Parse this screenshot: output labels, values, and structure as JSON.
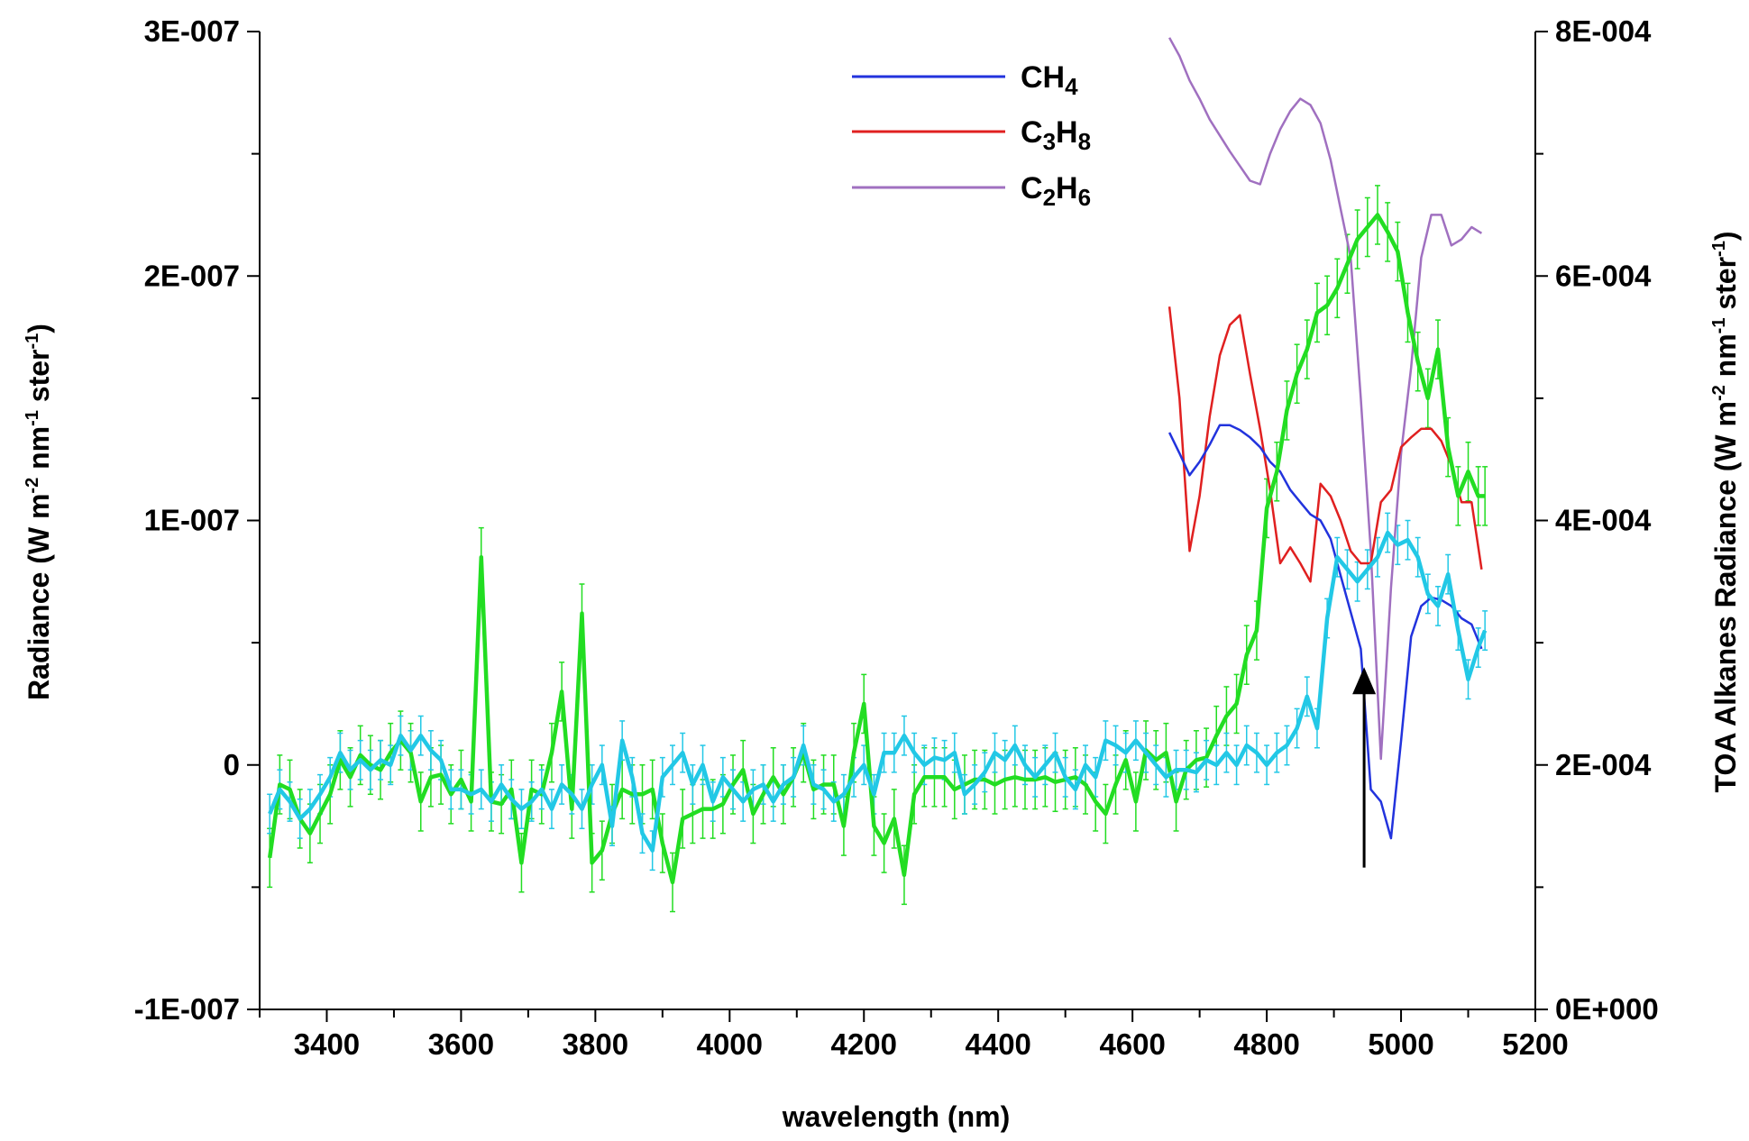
{
  "chart_data": {
    "type": "line",
    "xlabel": "wavelength (nm)",
    "ylabel": "Radiance (W m-2 nm-1 ster-1)",
    "y2label": "TOA Alkanes Radiance (W m-2 nm-1 ster-1)",
    "xlim": [
      3300,
      5200
    ],
    "ylim": [
      -1e-07,
      3e-07
    ],
    "y2lim": [
      0,
      0.0008
    ],
    "x_ticks": [
      {
        "v": 3400,
        "label": "3400"
      },
      {
        "v": 3600,
        "label": "3600"
      },
      {
        "v": 3800,
        "label": "3800"
      },
      {
        "v": 4000,
        "label": "4000"
      },
      {
        "v": 4200,
        "label": "4200"
      },
      {
        "v": 4400,
        "label": "4400"
      },
      {
        "v": 4600,
        "label": "4600"
      },
      {
        "v": 4800,
        "label": "4800"
      },
      {
        "v": 5000,
        "label": "5000"
      },
      {
        "v": 5200,
        "label": "5200"
      }
    ],
    "y_ticks": [
      {
        "v": -1e-07,
        "label": "-1E-007"
      },
      {
        "v": 0,
        "label": "0"
      },
      {
        "v": 1e-07,
        "label": "1E-007"
      },
      {
        "v": 2e-07,
        "label": "2E-007"
      },
      {
        "v": 3e-07,
        "label": "3E-007"
      }
    ],
    "y2_ticks": [
      {
        "v": 0,
        "label": "0E+000"
      },
      {
        "v": 0.0002,
        "label": "2E-004"
      },
      {
        "v": 0.0004,
        "label": "4E-004"
      },
      {
        "v": 0.0006,
        "label": "6E-004"
      },
      {
        "v": 0.0008,
        "label": "8E-004"
      }
    ],
    "legend": {
      "placement": "top-center",
      "entries": [
        {
          "base": "CH",
          "sub": "4",
          "tail": "",
          "color": "#2233dd"
        },
        {
          "base": "C",
          "sub": "3",
          "mid": "H",
          "sub2": "8",
          "color": "#e02020"
        },
        {
          "base": "C",
          "sub": "2",
          "mid": "H",
          "sub2": "6",
          "color": "#a070c0"
        }
      ]
    },
    "annotation_arrow": {
      "x": 4945,
      "y_from": -4.2e-08,
      "y_to": 4e-08
    },
    "series_green": {
      "color": "#22dd22",
      "axis": "left",
      "x": [
        3315,
        3330,
        3345,
        3360,
        3375,
        3390,
        3405,
        3420,
        3435,
        3450,
        3465,
        3480,
        3495,
        3510,
        3525,
        3540,
        3555,
        3570,
        3585,
        3600,
        3615,
        3630,
        3645,
        3660,
        3675,
        3690,
        3705,
        3720,
        3735,
        3750,
        3765,
        3780,
        3795,
        3810,
        3825,
        3840,
        3855,
        3870,
        3885,
        3900,
        3915,
        3930,
        3945,
        3960,
        3975,
        3990,
        4005,
        4020,
        4035,
        4050,
        4065,
        4080,
        4095,
        4110,
        4125,
        4140,
        4155,
        4170,
        4185,
        4200,
        4215,
        4230,
        4245,
        4260,
        4275,
        4290,
        4305,
        4320,
        4335,
        4350,
        4365,
        4380,
        4395,
        4410,
        4425,
        4440,
        4455,
        4470,
        4485,
        4500,
        4515,
        4530,
        4545,
        4560,
        4575,
        4590,
        4605,
        4620,
        4635,
        4650,
        4665,
        4680,
        4695,
        4710,
        4725,
        4740,
        4755,
        4770,
        4785,
        4800,
        4815,
        4830,
        4845,
        4860,
        4875,
        4890,
        4905,
        4920,
        4935,
        4950,
        4965,
        4980,
        4995,
        5010,
        5025,
        5040,
        5055,
        5070,
        5085,
        5100,
        5115,
        5125
      ],
      "y": [
        -3.8e-08,
        -8e-09,
        -1e-08,
        -2.2e-08,
        -2.8e-08,
        -2e-08,
        -1.2e-08,
        2e-09,
        -5e-09,
        4e-09,
        0.0,
        -2e-09,
        5e-09,
        1e-08,
        5e-09,
        -1.5e-08,
        -5e-09,
        -4e-09,
        -1.2e-08,
        -6e-09,
        -1.5e-08,
        8.5e-08,
        -1.5e-08,
        -1.6e-08,
        -1e-08,
        -4e-08,
        -1e-08,
        -1.2e-08,
        5e-09,
        3e-08,
        -1.8e-08,
        6.2e-08,
        -4e-08,
        -3.5e-08,
        -2e-08,
        -1e-08,
        -1.2e-08,
        -1.2e-08,
        -1e-08,
        -3.2e-08,
        -4.8e-08,
        -2.2e-08,
        -2e-08,
        -1.8e-08,
        -1.8e-08,
        -1.6e-08,
        -8e-09,
        -2e-09,
        -2e-08,
        -1.2e-08,
        -5e-09,
        -1.2e-08,
        -5e-09,
        5e-09,
        -1e-08,
        -8e-09,
        -8e-09,
        -2.5e-08,
        5e-09,
        2.5e-08,
        -2.5e-08,
        -3.2e-08,
        -2.2e-08,
        -4.5e-08,
        -1.2e-08,
        -5e-09,
        -5e-09,
        -5e-09,
        -1e-08,
        -8e-09,
        -6e-09,
        -6e-09,
        -8e-09,
        -6e-09,
        -5e-09,
        -6e-09,
        -6e-09,
        -5e-09,
        -7e-09,
        -6e-09,
        -5e-09,
        -8e-09,
        -1.5e-08,
        -2e-08,
        -8e-09,
        2e-09,
        -1.5e-08,
        6e-09,
        2e-09,
        5e-09,
        -1.5e-08,
        -2e-09,
        2e-09,
        3e-09,
        1.2e-08,
        2e-08,
        2.5e-08,
        4.5e-08,
        5.5e-08,
        1.05e-07,
        1.2e-07,
        1.45e-07,
        1.6e-07,
        1.7e-07,
        1.85e-07,
        1.88e-07,
        1.95e-07,
        2.05e-07,
        2.15e-07,
        2.2e-07,
        2.25e-07,
        2.18e-07,
        2.1e-07,
        1.85e-07,
        1.65e-07,
        1.5e-07,
        1.7e-07,
        1.3e-07,
        1.1e-07,
        1.2e-07,
        1.1e-07,
        1.1e-07
      ],
      "err": 1.2e-08
    },
    "series_cyan": {
      "color": "#22c8e6",
      "axis": "left",
      "x": [
        3315,
        3330,
        3345,
        3360,
        3375,
        3390,
        3405,
        3420,
        3435,
        3450,
        3465,
        3480,
        3495,
        3510,
        3525,
        3540,
        3555,
        3570,
        3585,
        3600,
        3615,
        3630,
        3645,
        3660,
        3675,
        3690,
        3705,
        3720,
        3735,
        3750,
        3765,
        3780,
        3795,
        3810,
        3825,
        3840,
        3855,
        3870,
        3885,
        3900,
        3915,
        3930,
        3945,
        3960,
        3975,
        3990,
        4005,
        4020,
        4035,
        4050,
        4065,
        4080,
        4095,
        4110,
        4125,
        4140,
        4155,
        4170,
        4185,
        4200,
        4215,
        4230,
        4245,
        4260,
        4275,
        4290,
        4305,
        4320,
        4335,
        4350,
        4365,
        4380,
        4395,
        4410,
        4425,
        4440,
        4455,
        4470,
        4485,
        4500,
        4515,
        4530,
        4545,
        4560,
        4575,
        4590,
        4605,
        4620,
        4635,
        4650,
        4665,
        4680,
        4695,
        4710,
        4725,
        4740,
        4755,
        4770,
        4785,
        4800,
        4815,
        4830,
        4845,
        4860,
        4875,
        4890,
        4905,
        4920,
        4935,
        4950,
        4965,
        4980,
        4995,
        5010,
        5025,
        5040,
        5055,
        5070,
        5085,
        5100,
        5115,
        5125
      ],
      "y": [
        -2e-08,
        -1e-08,
        -1.5e-08,
        -2.2e-08,
        -1.8e-08,
        -1.2e-08,
        -5e-09,
        5e-09,
        -2e-09,
        2e-09,
        -2e-09,
        2e-09,
        0.0,
        1.2e-08,
        6e-09,
        1.2e-08,
        6e-09,
        2e-09,
        -1e-08,
        -1e-08,
        -1.2e-08,
        -1e-08,
        -1.5e-08,
        -8e-09,
        -1.4e-08,
        -1.8e-08,
        -1.5e-08,
        -1e-08,
        -1.8e-08,
        -8e-09,
        -1.2e-08,
        -1.8e-08,
        -8e-09,
        0.0,
        -2.5e-08,
        1e-08,
        -5e-09,
        -2.8e-08,
        -3.5e-08,
        -5e-09,
        0.0,
        5e-09,
        -8e-09,
        0.0,
        -1.5e-08,
        -5e-09,
        -1e-08,
        -1.5e-08,
        -1e-08,
        -8e-09,
        -1.5e-08,
        -8e-09,
        -5e-09,
        8e-09,
        -8e-09,
        -1e-08,
        -1.5e-08,
        -1.2e-08,
        -5e-09,
        0.0,
        -1.2e-08,
        5e-09,
        5e-09,
        1.2e-08,
        5e-09,
        0.0,
        3e-09,
        2e-09,
        5e-09,
        -1.2e-08,
        -8e-09,
        -3e-09,
        5e-09,
        2e-09,
        8e-09,
        0.0,
        -5e-09,
        0.0,
        5e-09,
        -5e-09,
        -1e-08,
        0.0,
        -5e-09,
        1e-08,
        8e-09,
        5e-09,
        1e-08,
        5e-09,
        0.0,
        -5e-09,
        -2e-09,
        -2e-09,
        -3e-09,
        2e-09,
        0.0,
        5e-09,
        0.0,
        8e-09,
        5e-09,
        0.0,
        5e-09,
        8e-09,
        1.5e-08,
        2.8e-08,
        1.5e-08,
        6e-08,
        8.5e-08,
        8e-08,
        7.5e-08,
        8e-08,
        8.5e-08,
        9.5e-08,
        9e-08,
        9.2e-08,
        8.5e-08,
        7e-08,
        6.5e-08,
        7.8e-08,
        5.5e-08,
        3.5e-08,
        4.8e-08,
        5.5e-08
      ],
      "err": 8e-09
    },
    "series_ch4": {
      "color": "#2233dd",
      "axis": "right",
      "x": [
        4655,
        4670,
        4685,
        4700,
        4715,
        4730,
        4745,
        4760,
        4775,
        4790,
        4805,
        4820,
        4835,
        4850,
        4865,
        4880,
        4895,
        4910,
        4925,
        4940,
        4955,
        4970,
        4985,
        5000,
        5015,
        5030,
        5045,
        5060,
        5075,
        5090,
        5105,
        5120
      ],
      "y": [
        0.000472,
        0.000455,
        0.000437,
        0.000448,
        0.000462,
        0.000478,
        0.000478,
        0.000474,
        0.000468,
        0.00046,
        0.000448,
        0.00044,
        0.000425,
        0.000415,
        0.000405,
        0.0004,
        0.000385,
        0.000355,
        0.000325,
        0.000295,
        0.00018,
        0.00017,
        0.00014,
        0.00022,
        0.000305,
        0.00033,
        0.000337,
        0.000335,
        0.00033,
        0.00032,
        0.000315,
        0.000295
      ]
    },
    "series_c3h8": {
      "color": "#e02020",
      "axis": "right",
      "x": [
        4655,
        4670,
        4685,
        4700,
        4715,
        4730,
        4745,
        4760,
        4775,
        4790,
        4805,
        4820,
        4835,
        4850,
        4865,
        4880,
        4895,
        4910,
        4925,
        4940,
        4955,
        4970,
        4985,
        5000,
        5015,
        5030,
        5045,
        5060,
        5075,
        5090,
        5105,
        5120
      ],
      "y": [
        0.000575,
        0.0005,
        0.000375,
        0.00042,
        0.000485,
        0.000535,
        0.00056,
        0.000568,
        0.00052,
        0.000475,
        0.000425,
        0.000365,
        0.000378,
        0.000365,
        0.00035,
        0.00043,
        0.00042,
        0.0004,
        0.000375,
        0.000365,
        0.000365,
        0.000415,
        0.000425,
        0.00046,
        0.000468,
        0.000475,
        0.000475,
        0.000465,
        0.000445,
        0.000415,
        0.000415,
        0.00036
      ]
    },
    "series_c2h6": {
      "color": "#a070c0",
      "axis": "right",
      "x": [
        4655,
        4670,
        4685,
        4700,
        4715,
        4730,
        4745,
        4760,
        4775,
        4790,
        4805,
        4820,
        4835,
        4850,
        4865,
        4880,
        4895,
        4910,
        4925,
        4940,
        4955,
        4970,
        4985,
        5000,
        5015,
        5030,
        5045,
        5060,
        5075,
        5090,
        5105,
        5120
      ],
      "y": [
        0.000795,
        0.00078,
        0.00076,
        0.000745,
        0.000728,
        0.000715,
        0.000702,
        0.00069,
        0.000678,
        0.000675,
        0.0007,
        0.00072,
        0.000735,
        0.000745,
        0.00074,
        0.000725,
        0.000695,
        0.000655,
        0.000615,
        0.0005,
        0.000375,
        0.000205,
        0.000345,
        0.000455,
        0.000525,
        0.000615,
        0.00065,
        0.00065,
        0.000625,
        0.00063,
        0.00064,
        0.000635
      ]
    }
  }
}
